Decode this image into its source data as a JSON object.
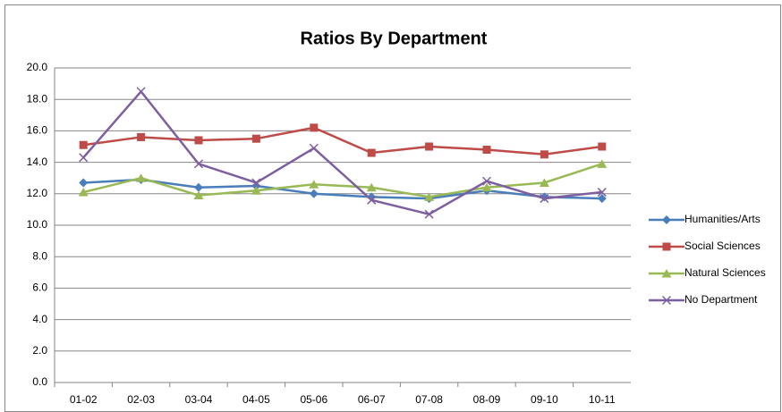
{
  "chart_data": {
    "type": "line",
    "title": "Ratios By Department",
    "categories": [
      "01-02",
      "02-03",
      "03-04",
      "04-05",
      "05-06",
      "06-07",
      "07-08",
      "08-09",
      "09-10",
      "10-11"
    ],
    "series": [
      {
        "name": "Humanities/Arts",
        "color": "#4a7ebb",
        "marker": "diamond",
        "values": [
          12.7,
          12.9,
          12.4,
          12.5,
          12.0,
          11.8,
          11.7,
          12.2,
          11.8,
          11.7
        ]
      },
      {
        "name": "Social Sciences",
        "color": "#be4b48",
        "marker": "square",
        "values": [
          15.1,
          15.6,
          15.4,
          15.5,
          16.2,
          14.6,
          15.0,
          14.8,
          14.5,
          15.0
        ]
      },
      {
        "name": "Natural Sciences",
        "color": "#98b954",
        "marker": "triangle",
        "values": [
          12.1,
          13.0,
          11.9,
          12.2,
          12.6,
          12.4,
          11.8,
          12.4,
          12.7,
          13.9
        ]
      },
      {
        "name": "No Department",
        "color": "#7d5fa0",
        "marker": "x",
        "values": [
          14.3,
          18.5,
          13.9,
          12.7,
          14.9,
          11.6,
          10.7,
          12.8,
          11.7,
          12.1
        ]
      }
    ],
    "ylim": [
      0,
      20
    ],
    "yticks": [
      {
        "value": 0,
        "label": "0.0"
      },
      {
        "value": 2,
        "label": "2.0"
      },
      {
        "value": 4,
        "label": "4.0"
      },
      {
        "value": 6,
        "label": "6.0"
      },
      {
        "value": 8,
        "label": "8.0"
      },
      {
        "value": 10,
        "label": "10.0"
      },
      {
        "value": 12,
        "label": "12.0"
      },
      {
        "value": 14,
        "label": "14.0"
      },
      {
        "value": 16,
        "label": "16.0"
      },
      {
        "value": 18,
        "label": "18.0"
      },
      {
        "value": 20,
        "label": "20.0"
      }
    ],
    "grid": true,
    "legend": "right"
  }
}
